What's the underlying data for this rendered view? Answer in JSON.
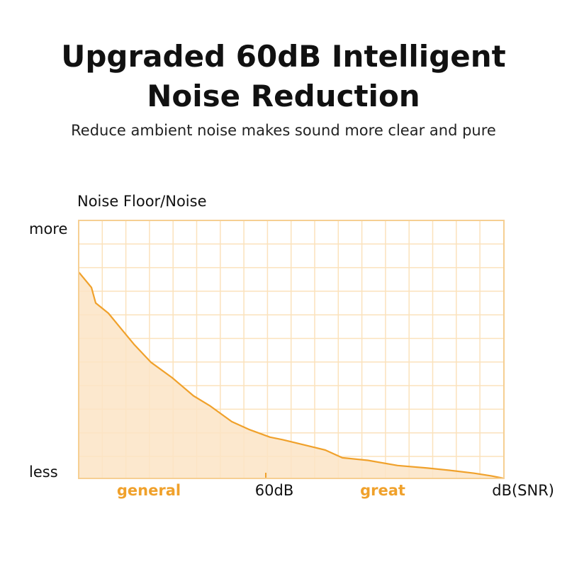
{
  "header": {
    "title_line1": "Upgraded 60dB Intelligent",
    "title_line2": "Noise Reduction",
    "subtitle": "Reduce ambient noise makes sound more clear and pure"
  },
  "chart_data": {
    "type": "area",
    "ylabel": "Noise Floor/Noise",
    "yticks": [
      "more",
      "less"
    ],
    "xlabel": "dB(SNR)",
    "x_categories": [
      "general",
      "great"
    ],
    "x_marker": {
      "label": "60dB",
      "x": 0.44
    },
    "xlim": [
      0,
      1
    ],
    "ylim": [
      0,
      1
    ],
    "grid": true,
    "series": [
      {
        "values": [
          [
            0.0,
            0.8
          ],
          [
            0.03,
            0.74
          ],
          [
            0.04,
            0.68
          ],
          [
            0.07,
            0.64
          ],
          [
            0.1,
            0.58
          ],
          [
            0.13,
            0.52
          ],
          [
            0.17,
            0.45
          ],
          [
            0.22,
            0.39
          ],
          [
            0.27,
            0.32
          ],
          [
            0.31,
            0.28
          ],
          [
            0.36,
            0.22
          ],
          [
            0.4,
            0.19
          ],
          [
            0.45,
            0.16
          ],
          [
            0.48,
            0.15
          ],
          [
            0.53,
            0.13
          ],
          [
            0.58,
            0.11
          ],
          [
            0.62,
            0.08
          ],
          [
            0.68,
            0.07
          ],
          [
            0.75,
            0.05
          ],
          [
            0.82,
            0.04
          ],
          [
            0.88,
            0.03
          ],
          [
            0.93,
            0.02
          ],
          [
            0.97,
            0.01
          ],
          [
            1.0,
            0.0
          ]
        ]
      }
    ],
    "colors": {
      "line": "#f0a12b",
      "fill": "#fbe4c5",
      "grid": "#fbe2bc",
      "frame": "#f6cf93",
      "category_text": "#f0a12b"
    }
  }
}
